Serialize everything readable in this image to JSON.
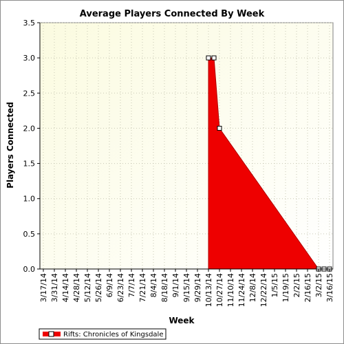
{
  "chart_data": {
    "type": "area",
    "title": "Average Players Connected By Week",
    "xlabel": "Week",
    "ylabel": "Players Connected",
    "ylim": [
      0,
      3.5
    ],
    "yticks": [
      "0.0",
      "0.5",
      "1.0",
      "1.5",
      "2.0",
      "2.5",
      "3.0",
      "3.5"
    ],
    "grid": true,
    "legend_position": "bottom-left",
    "x_tick_labels": [
      "3/17/14",
      "3/31/14",
      "4/14/14",
      "4/28/14",
      "5/12/14",
      "5/26/14",
      "6/9/14",
      "6/23/14",
      "7/7/14",
      "7/21/14",
      "8/4/14",
      "8/18/14",
      "9/1/14",
      "9/15/14",
      "9/29/14",
      "10/13/14",
      "10/27/14",
      "11/10/14",
      "11/24/14",
      "12/8/14",
      "12/22/14",
      "1/5/15",
      "1/19/15",
      "2/2/15",
      "2/16/15",
      "3/2/15",
      "3/16/15"
    ],
    "series": [
      {
        "name": "Rifts: Chronicles of Kingsdale",
        "color": "#ee0000",
        "points": [
          {
            "x": "10/13/14",
            "y": 3.0
          },
          {
            "x": "10/20/14",
            "y": 3.0
          },
          {
            "x": "10/27/14",
            "y": 2.0
          },
          {
            "x": "3/2/15",
            "y": 0.0
          },
          {
            "x": "3/9/15",
            "y": 0.0
          },
          {
            "x": "3/16/15",
            "y": 0.0
          }
        ]
      }
    ]
  }
}
